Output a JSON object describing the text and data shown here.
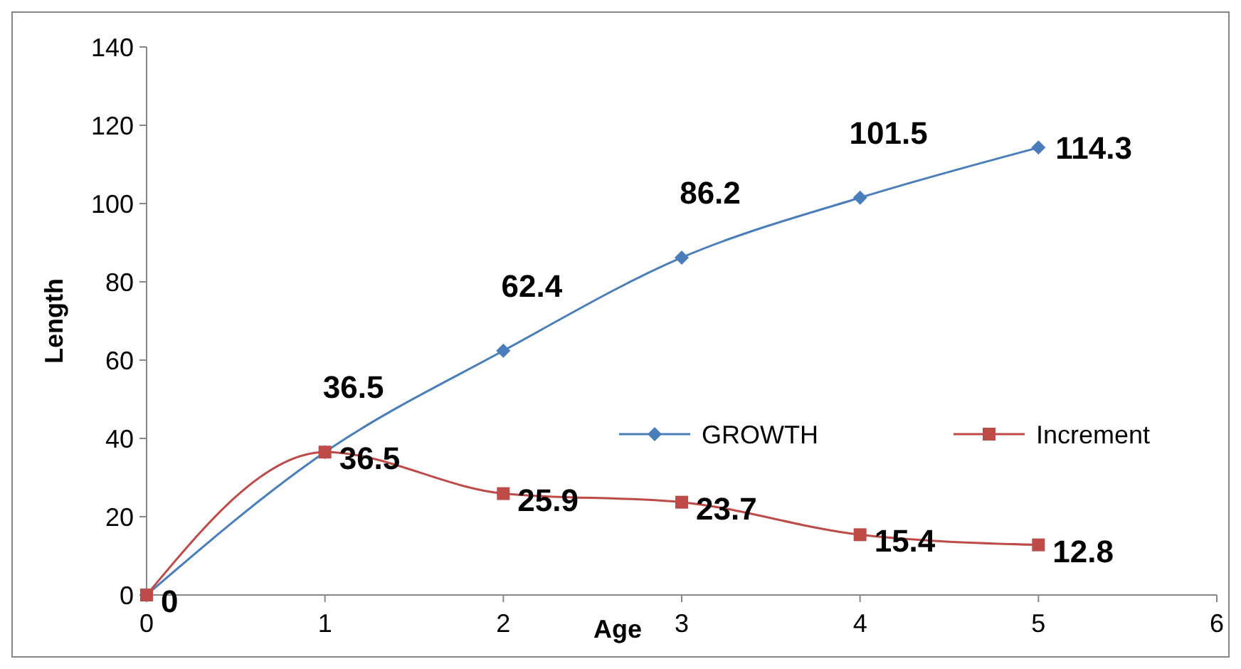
{
  "chart_data": {
    "type": "line",
    "xlabel": "Age",
    "ylabel": "Length",
    "x": [
      0,
      1,
      2,
      3,
      4,
      5
    ],
    "xlim": [
      0,
      6
    ],
    "xticks": [
      0,
      1,
      2,
      3,
      4,
      5,
      6
    ],
    "ylim": [
      0,
      140
    ],
    "yticks": [
      0,
      20,
      40,
      60,
      80,
      100,
      120,
      140
    ],
    "grid": false,
    "legend": "right",
    "series": [
      {
        "name": "GROWTH",
        "color": "#4a7ebb",
        "marker": "diamond",
        "values": [
          0,
          36.5,
          62.4,
          86.2,
          101.5,
          114.3
        ],
        "value_labels": [
          null,
          "36.5",
          "62.4",
          "86.2",
          "101.5",
          "114.3"
        ]
      },
      {
        "name": "Increment",
        "color": "#be4b48",
        "marker": "square",
        "values": [
          0,
          36.5,
          25.9,
          23.7,
          15.4,
          12.8
        ],
        "value_labels": [
          "0",
          "36.5",
          "25.9",
          "23.7",
          "15.4",
          "12.8"
        ]
      }
    ]
  }
}
